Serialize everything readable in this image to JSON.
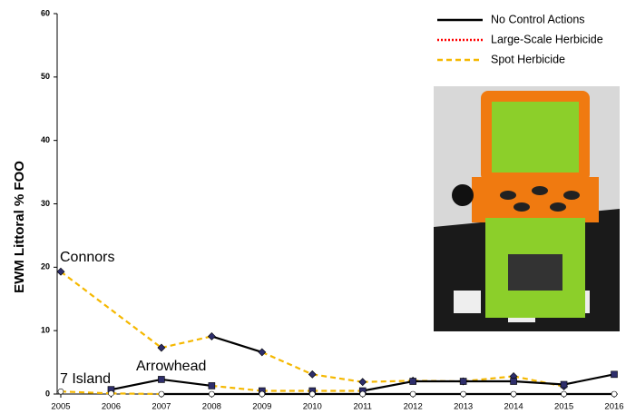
{
  "chart_data": {
    "type": "line",
    "y_label": "EWM Littoral % FOO",
    "xlim": [
      2005,
      2016
    ],
    "xticks": [
      2005,
      2006,
      2007,
      2008,
      2009,
      2010,
      2011,
      2012,
      2013,
      2014,
      2015,
      2016
    ],
    "ylim": [
      0,
      60
    ],
    "yticks": [
      0,
      10,
      20,
      30,
      40,
      50,
      60
    ],
    "legend_position": "upper right",
    "legend": [
      {
        "name": "No Control Actions",
        "color": "#000000",
        "dash": "solid"
      },
      {
        "name": "Large-Scale Herbicide",
        "color": "#ff0000",
        "dash": "dotted"
      },
      {
        "name": "Spot Herbicide",
        "color": "#f5b800",
        "dash": "dashed"
      }
    ],
    "annotations": [
      "Connors",
      "7 Island",
      "Arrowhead"
    ],
    "series": [
      {
        "name": "Connors",
        "marker": "diamond",
        "marker_color": "#2e2e6b",
        "x": [
          2005,
          2007,
          2008,
          2009,
          2010,
          2011,
          2012,
          2013,
          2014,
          2015
        ],
        "values": [
          19.3,
          7.3,
          9.1,
          6.6,
          3.1,
          1.9,
          2.1,
          2.0,
          2.8,
          1.2
        ],
        "segments": [
          2,
          2,
          0,
          2,
          2,
          2,
          2,
          2,
          2
        ]
      },
      {
        "name": "Arrowhead",
        "marker": "square",
        "marker_color": "#2e2e6b",
        "x": [
          2006,
          2007,
          2008,
          2009,
          2010,
          2011,
          2012,
          2013,
          2014,
          2015,
          2016
        ],
        "values": [
          0.7,
          2.3,
          1.3,
          0.5,
          0.5,
          0.5,
          2.0,
          2.0,
          2.0,
          1.5,
          3.1
        ],
        "segments": [
          0,
          0,
          2,
          2,
          2,
          0,
          0,
          0,
          0,
          0
        ]
      },
      {
        "name": "7 Island",
        "marker": "circle",
        "marker_color": "#ffffff",
        "x": [
          2005,
          2006,
          2007,
          2008,
          2009,
          2010,
          2011,
          2012,
          2013,
          2014,
          2015,
          2016
        ],
        "values": [
          0.4,
          0.1,
          0,
          0,
          0,
          0,
          0,
          0,
          0,
          0,
          0,
          0
        ],
        "segments": [
          2,
          2,
          0,
          0,
          0,
          0,
          0,
          0,
          0,
          0,
          0
        ]
      }
    ]
  }
}
